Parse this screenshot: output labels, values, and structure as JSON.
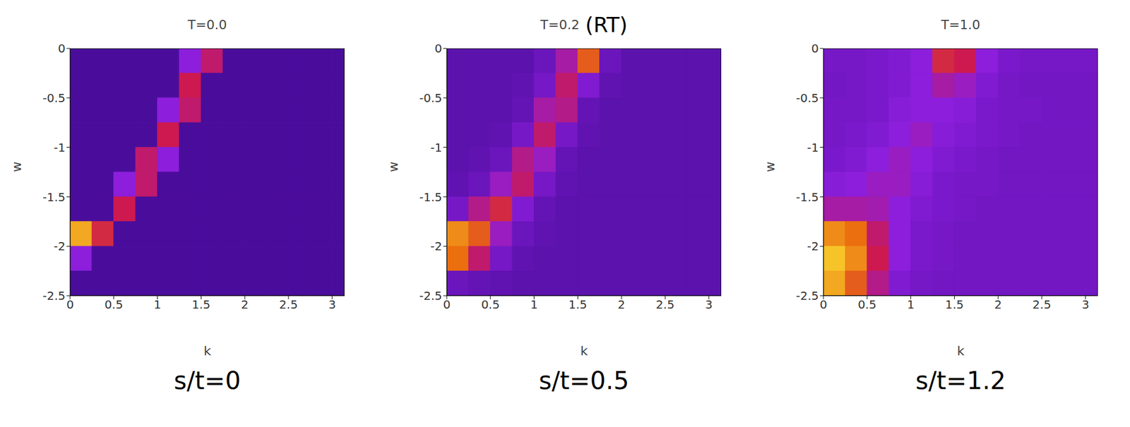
{
  "chart_data": [
    {
      "type": "heatmap",
      "title": "T=0.0",
      "subtitle": "s/t=0",
      "x_label": "k",
      "y_label": "w",
      "xlim": [
        0,
        3.1416
      ],
      "ylim": [
        -2.5,
        0
      ],
      "xticks": [
        0,
        0.5,
        1,
        1.5,
        2,
        2.5,
        3
      ],
      "yticks": [
        0,
        -0.5,
        -1,
        -1.5,
        -2,
        -2.5
      ],
      "x_edges": [
        0,
        0.25,
        0.5,
        0.75,
        1,
        1.25,
        1.5,
        1.75,
        2,
        2.25,
        2.5,
        2.75,
        3,
        3.1416
      ],
      "y_edges": [
        0,
        -0.25,
        -0.5,
        -0.75,
        -1,
        -1.25,
        -1.5,
        -1.75,
        -2,
        -2.25,
        -2.5
      ],
      "cells": [
        [
          0,
          0,
          0,
          0,
          0,
          0.3,
          0.5,
          0,
          0,
          0,
          0,
          0,
          0
        ],
        [
          0,
          0,
          0,
          0,
          0,
          0.55,
          0,
          0,
          0,
          0,
          0,
          0,
          0
        ],
        [
          0,
          0,
          0,
          0,
          0.3,
          0.5,
          0,
          0,
          0,
          0,
          0,
          0,
          0
        ],
        [
          0,
          0,
          0,
          0,
          0.55,
          0,
          0,
          0,
          0,
          0,
          0,
          0,
          0
        ],
        [
          0,
          0,
          0,
          0.5,
          0.3,
          0,
          0,
          0,
          0,
          0,
          0,
          0,
          0
        ],
        [
          0,
          0,
          0.3,
          0.5,
          0,
          0,
          0,
          0,
          0,
          0,
          0,
          0,
          0
        ],
        [
          0,
          0,
          0.55,
          0,
          0,
          0,
          0,
          0,
          0,
          0,
          0,
          0,
          0
        ],
        [
          0.9,
          0.6,
          0,
          0,
          0,
          0,
          0,
          0,
          0,
          0,
          0,
          0,
          0
        ],
        [
          0.3,
          0,
          0,
          0,
          0,
          0,
          0,
          0,
          0,
          0,
          0,
          0,
          0
        ],
        [
          0,
          0,
          0,
          0,
          0,
          0,
          0,
          0,
          0,
          0,
          0,
          0,
          0
        ]
      ]
    },
    {
      "type": "heatmap",
      "title": "T=0.2",
      "annotation": "(RT)",
      "subtitle": "s/t=0.5",
      "x_label": "k",
      "y_label": "w",
      "xlim": [
        0,
        3.1416
      ],
      "ylim": [
        -2.5,
        0
      ],
      "xticks": [
        0,
        0.5,
        1,
        1.5,
        2,
        2.5,
        3
      ],
      "yticks": [
        0,
        -0.5,
        -1,
        -1.5,
        -2,
        -2.5
      ],
      "x_edges": [
        0,
        0.25,
        0.5,
        0.75,
        1,
        1.25,
        1.5,
        1.75,
        2,
        2.25,
        2.5,
        2.75,
        3,
        3.1416
      ],
      "y_edges": [
        0,
        -0.25,
        -0.5,
        -0.75,
        -1,
        -1.25,
        -1.5,
        -1.75,
        -2,
        -2.25,
        -2.5
      ],
      "cells": [
        [
          0.08,
          0.08,
          0.08,
          0.08,
          0.15,
          0.4,
          0.75,
          0.15,
          0.08,
          0.08,
          0.08,
          0.08,
          0.08
        ],
        [
          0.08,
          0.08,
          0.08,
          0.1,
          0.2,
          0.5,
          0.25,
          0.1,
          0.08,
          0.08,
          0.08,
          0.08,
          0.08
        ],
        [
          0.08,
          0.08,
          0.08,
          0.12,
          0.4,
          0.45,
          0.12,
          0.08,
          0.08,
          0.08,
          0.08,
          0.08,
          0.08
        ],
        [
          0.08,
          0.08,
          0.1,
          0.2,
          0.5,
          0.2,
          0.1,
          0.08,
          0.08,
          0.08,
          0.08,
          0.08,
          0.08
        ],
        [
          0.08,
          0.1,
          0.15,
          0.45,
          0.35,
          0.12,
          0.08,
          0.08,
          0.08,
          0.08,
          0.08,
          0.08,
          0.08
        ],
        [
          0.1,
          0.15,
          0.35,
          0.5,
          0.2,
          0.1,
          0.08,
          0.08,
          0.08,
          0.08,
          0.08,
          0.08,
          0.08
        ],
        [
          0.2,
          0.45,
          0.6,
          0.25,
          0.12,
          0.08,
          0.08,
          0.08,
          0.08,
          0.08,
          0.08,
          0.08,
          0.08
        ],
        [
          0.85,
          0.75,
          0.35,
          0.15,
          0.1,
          0.08,
          0.08,
          0.08,
          0.08,
          0.08,
          0.08,
          0.08,
          0.08
        ],
        [
          0.8,
          0.5,
          0.2,
          0.1,
          0.08,
          0.08,
          0.08,
          0.08,
          0.08,
          0.08,
          0.08,
          0.08,
          0.08
        ],
        [
          0.15,
          0.12,
          0.1,
          0.08,
          0.08,
          0.08,
          0.08,
          0.08,
          0.08,
          0.08,
          0.08,
          0.08,
          0.08
        ]
      ]
    },
    {
      "type": "heatmap",
      "title": "T=1.0",
      "subtitle": "s/t=1.2",
      "x_label": "k",
      "y_label": "w",
      "xlim": [
        0,
        3.1416
      ],
      "ylim": [
        -2.5,
        0
      ],
      "xticks": [
        0,
        0.5,
        1,
        1.5,
        2,
        2.5,
        3
      ],
      "yticks": [
        0,
        -0.5,
        -1,
        -1.5,
        -2,
        -2.5
      ],
      "x_edges": [
        0,
        0.25,
        0.5,
        0.75,
        1,
        1.25,
        1.5,
        1.75,
        2,
        2.25,
        2.5,
        2.75,
        3,
        3.1416
      ],
      "y_edges": [
        0,
        -0.25,
        -0.5,
        -0.75,
        -1,
        -1.25,
        -1.5,
        -1.75,
        -2,
        -2.25,
        -2.5
      ],
      "cells": [
        [
          0.2,
          0.2,
          0.22,
          0.25,
          0.3,
          0.6,
          0.55,
          0.3,
          0.22,
          0.2,
          0.2,
          0.2,
          0.2
        ],
        [
          0.18,
          0.2,
          0.22,
          0.25,
          0.3,
          0.4,
          0.35,
          0.25,
          0.2,
          0.18,
          0.18,
          0.18,
          0.18
        ],
        [
          0.2,
          0.2,
          0.22,
          0.28,
          0.3,
          0.3,
          0.28,
          0.22,
          0.2,
          0.2,
          0.18,
          0.18,
          0.18
        ],
        [
          0.2,
          0.22,
          0.25,
          0.3,
          0.35,
          0.28,
          0.25,
          0.22,
          0.2,
          0.18,
          0.18,
          0.18,
          0.18
        ],
        [
          0.22,
          0.25,
          0.3,
          0.35,
          0.3,
          0.25,
          0.22,
          0.2,
          0.18,
          0.18,
          0.18,
          0.18,
          0.18
        ],
        [
          0.28,
          0.3,
          0.35,
          0.35,
          0.28,
          0.22,
          0.2,
          0.2,
          0.18,
          0.18,
          0.18,
          0.18,
          0.18
        ],
        [
          0.4,
          0.4,
          0.38,
          0.3,
          0.25,
          0.22,
          0.2,
          0.18,
          0.18,
          0.18,
          0.18,
          0.18,
          0.18
        ],
        [
          0.85,
          0.8,
          0.5,
          0.3,
          0.22,
          0.2,
          0.18,
          0.18,
          0.18,
          0.18,
          0.18,
          0.18,
          0.18
        ],
        [
          0.95,
          0.85,
          0.55,
          0.3,
          0.22,
          0.2,
          0.18,
          0.18,
          0.18,
          0.18,
          0.18,
          0.18,
          0.18
        ],
        [
          0.9,
          0.75,
          0.45,
          0.25,
          0.2,
          0.18,
          0.18,
          0.18,
          0.18,
          0.18,
          0.18,
          0.18,
          0.18
        ]
      ]
    }
  ]
}
